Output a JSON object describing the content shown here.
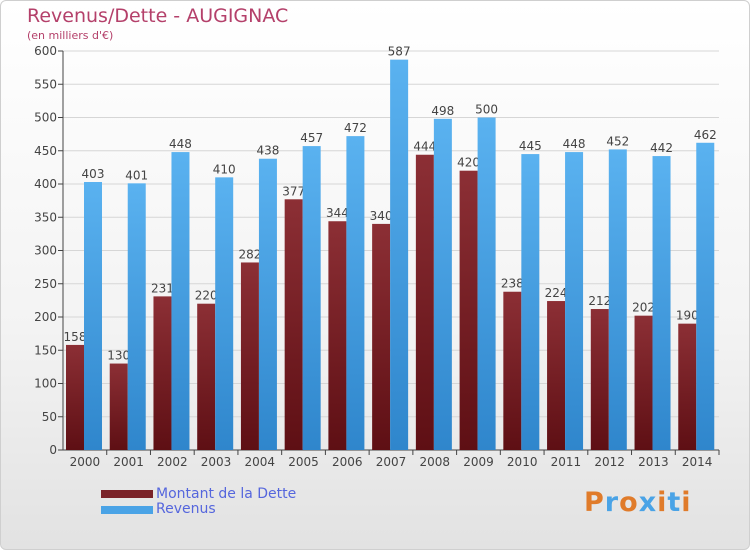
{
  "chart_data": {
    "type": "bar",
    "title": "Revenus/Dette - AUGIGNAC",
    "subtitle": "(en milliers d'€)",
    "categories": [
      "2000",
      "2001",
      "2002",
      "2003",
      "2004",
      "2005",
      "2006",
      "2007",
      "2008",
      "2009",
      "2010",
      "2011",
      "2012",
      "2013",
      "2014"
    ],
    "series": [
      {
        "name": "Montant de la Dette",
        "color": "#7a2228",
        "values": [
          158,
          130,
          231,
          220,
          282,
          377,
          344,
          340,
          444,
          420,
          238,
          224,
          212,
          202,
          190
        ]
      },
      {
        "name": "Revenus",
        "color": "#4aa3e6",
        "values": [
          403,
          401,
          448,
          410,
          438,
          457,
          472,
          587,
          498,
          500,
          445,
          448,
          452,
          442,
          462
        ]
      }
    ],
    "ylim": [
      0,
      600
    ],
    "yticks": [
      0,
      50,
      100,
      150,
      200,
      250,
      300,
      350,
      400,
      450,
      500,
      550,
      600
    ],
    "grid": true,
    "legend_position": "bottom-left"
  },
  "logo": {
    "text": "Proxiti",
    "colors": [
      "#e07b2a",
      "#4aa3e6",
      "#e07b2a",
      "#4aa3e6",
      "#e07b2a",
      "#4aa3e6",
      "#e07b2a"
    ]
  }
}
